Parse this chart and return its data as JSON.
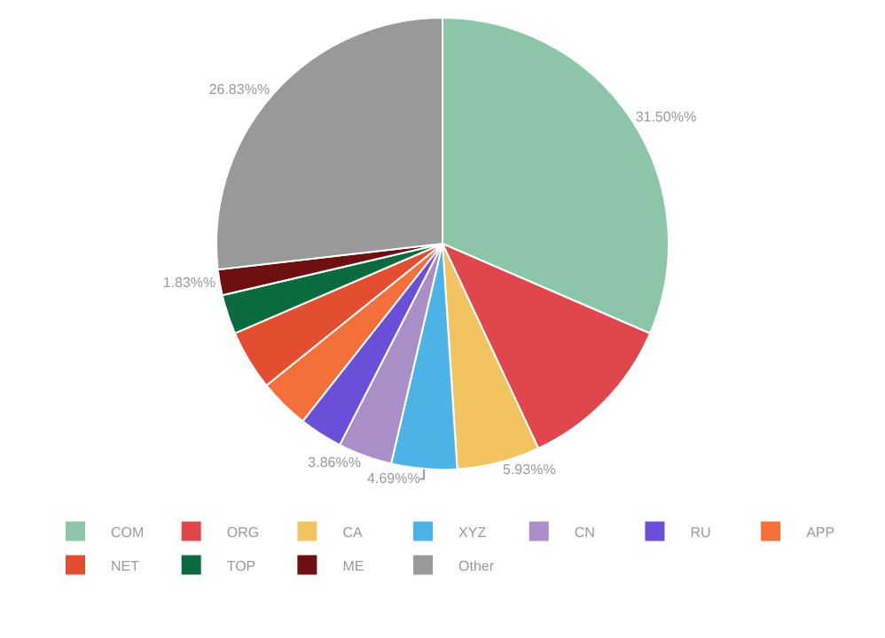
{
  "chart_data": {
    "type": "pie",
    "categories": [
      "COM",
      "ORG",
      "CA",
      "XYZ",
      "CN",
      "RU",
      "APP",
      "NET",
      "TOP",
      "ME",
      "Other"
    ],
    "values": [
      31.5,
      11.53,
      5.93,
      4.69,
      3.86,
      3.1,
      3.6,
      4.3,
      2.83,
      1.83,
      26.83
    ],
    "value_labels": [
      "31.50%%",
      null,
      "5.93%%",
      "4.69%%",
      "3.86%%",
      null,
      null,
      null,
      null,
      "1.83%%",
      "26.83%%"
    ],
    "colors": [
      "#8cc5a8",
      "#e0474c",
      "#f2c45f",
      "#4db3e6",
      "#a98fc8",
      "#6a4fd8",
      "#f3703a",
      "#e24e2f",
      "#0c6b3e",
      "#6e0f12",
      "#999999"
    ],
    "legend": "bottom"
  }
}
